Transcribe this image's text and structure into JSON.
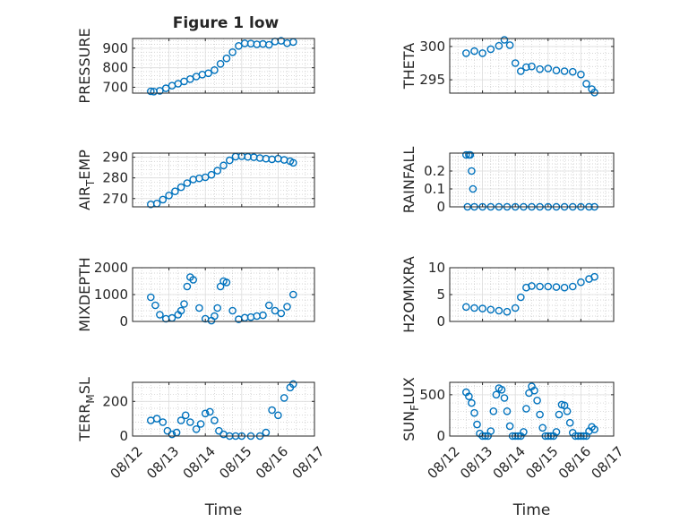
{
  "figure_title": "Figure 1 low",
  "marker_color": "#0072BD",
  "chart_data": [
    {
      "type": "scatter",
      "id": "pressure",
      "ylabel": "PRESSURE",
      "ylim": [
        670,
        950
      ],
      "yticks": [
        700,
        800,
        900
      ],
      "grid": true,
      "minor_grid": true,
      "x": [
        "08/12 12:00",
        "08/12 14:00",
        "08/12 18:00",
        "08/12 22:00",
        "08/13 02:00",
        "08/13 06:00",
        "08/13 10:00",
        "08/13 14:00",
        "08/13 18:00",
        "08/13 22:00",
        "08/14 02:00",
        "08/14 06:00",
        "08/14 10:00",
        "08/14 14:00",
        "08/14 18:00",
        "08/14 22:00",
        "08/15 02:00",
        "08/15 06:00",
        "08/15 10:00",
        "08/15 14:00",
        "08/15 18:00",
        "08/15 22:00",
        "08/16 02:00",
        "08/16 06:00",
        "08/16 10:00"
      ],
      "y": [
        679,
        678,
        682,
        695,
        708,
        718,
        730,
        742,
        755,
        765,
        772,
        788,
        820,
        848,
        880,
        912,
        925,
        924,
        920,
        922,
        918,
        935,
        938,
        926,
        932
      ]
    },
    {
      "type": "scatter",
      "id": "theta",
      "ylabel": "THETA",
      "ylim": [
        293,
        301.2
      ],
      "yticks": [
        295,
        300
      ],
      "grid": true,
      "minor_grid": true,
      "x": [
        "08/12 12:00",
        "08/12 18:00",
        "08/13 00:00",
        "08/13 06:00",
        "08/13 12:00",
        "08/13 16:00",
        "08/13 20:00",
        "08/14 00:00",
        "08/14 04:00",
        "08/14 08:00",
        "08/14 12:00",
        "08/14 18:00",
        "08/15 00:00",
        "08/15 06:00",
        "08/15 12:00",
        "08/15 18:00",
        "08/16 00:00",
        "08/16 04:00",
        "08/16 08:00",
        "08/16 10:00"
      ],
      "y": [
        299.0,
        299.3,
        299.0,
        299.6,
        300.1,
        301.0,
        300.2,
        297.5,
        296.3,
        296.9,
        297.0,
        296.6,
        296.7,
        296.4,
        296.3,
        296.2,
        295.8,
        294.4,
        293.6,
        293.1
      ]
    },
    {
      "type": "scatter",
      "id": "air_temp",
      "ylabel": "AIR_TEMP",
      "ylabel_parts": [
        "AIR",
        "T",
        "EMP"
      ],
      "ylim": [
        266,
        292
      ],
      "yticks": [
        270,
        280,
        290
      ],
      "grid": true,
      "minor_grid": true,
      "x": [
        "08/12 12:00",
        "08/12 16:00",
        "08/12 20:00",
        "08/13 00:00",
        "08/13 04:00",
        "08/13 08:00",
        "08/13 12:00",
        "08/13 16:00",
        "08/13 20:00",
        "08/14 00:00",
        "08/14 04:00",
        "08/14 08:00",
        "08/14 12:00",
        "08/14 16:00",
        "08/14 20:00",
        "08/15 00:00",
        "08/15 04:00",
        "08/15 08:00",
        "08/15 12:00",
        "08/15 16:00",
        "08/15 20:00",
        "08/16 00:00",
        "08/16 04:00",
        "08/16 08:00",
        "08/16 10:00"
      ],
      "y": [
        267.2,
        267.6,
        269.5,
        271.5,
        273.5,
        275.5,
        277.5,
        279.2,
        279.8,
        280.3,
        281.5,
        283.5,
        286.0,
        288.5,
        290.3,
        290.5,
        290.2,
        290.0,
        289.6,
        289.3,
        289.0,
        289.3,
        288.7,
        288.1,
        287.3
      ]
    },
    {
      "type": "scatter",
      "id": "rainfall",
      "ylabel": "RAINFALL",
      "ylim": [
        0,
        0.3
      ],
      "yticks": [
        0,
        0.1,
        0.2
      ],
      "grid": true,
      "minor_grid": true,
      "x": [
        "08/12 12:00",
        "08/12 13:00",
        "08/12 14:00",
        "08/12 15:00",
        "08/12 16:00",
        "08/12 17:00",
        "08/12 18:00",
        "08/13 00:00",
        "08/13 06:00",
        "08/13 12:00",
        "08/13 18:00",
        "08/14 00:00",
        "08/14 06:00",
        "08/14 12:00",
        "08/14 18:00",
        "08/15 00:00",
        "08/15 06:00",
        "08/15 12:00",
        "08/15 18:00",
        "08/16 00:00",
        "08/16 06:00",
        "08/16 10:00"
      ],
      "y": [
        0.29,
        0.0,
        0.29,
        0.29,
        0.2,
        0.1,
        0,
        0,
        0,
        0,
        0,
        0,
        0,
        0,
        0,
        0,
        0,
        0,
        0,
        0,
        0,
        0
      ]
    },
    {
      "type": "scatter",
      "id": "mixdepth",
      "ylabel": "MIXDEPTH",
      "ylim": [
        0,
        2000
      ],
      "yticks": [
        0,
        1000,
        2000
      ],
      "grid": true,
      "minor_grid": true,
      "x": [
        "08/12 12:00",
        "08/12 15:00",
        "08/12 18:00",
        "08/12 22:00",
        "08/13 02:00",
        "08/13 06:00",
        "08/13 08:00",
        "08/13 10:00",
        "08/13 12:00",
        "08/13 14:00",
        "08/13 16:00",
        "08/13 20:00",
        "08/14 00:00",
        "08/14 04:00",
        "08/14 06:00",
        "08/14 08:00",
        "08/14 10:00",
        "08/14 12:00",
        "08/14 14:00",
        "08/14 18:00",
        "08/14 22:00",
        "08/15 02:00",
        "08/15 06:00",
        "08/15 10:00",
        "08/15 14:00",
        "08/15 18:00",
        "08/15 22:00",
        "08/16 02:00",
        "08/16 06:00",
        "08/16 10:00"
      ],
      "y": [
        900,
        600,
        250,
        100,
        130,
        250,
        400,
        650,
        1300,
        1650,
        1550,
        500,
        100,
        30,
        200,
        500,
        1300,
        1500,
        1450,
        400,
        80,
        140,
        160,
        200,
        230,
        600,
        400,
        300,
        550,
        1000
      ]
    },
    {
      "type": "scatter",
      "id": "h2omixra",
      "ylabel": "H2OMIXRA",
      "ylim": [
        0,
        10
      ],
      "yticks": [
        0,
        5,
        10
      ],
      "grid": true,
      "minor_grid": true,
      "x": [
        "08/12 12:00",
        "08/12 18:00",
        "08/13 00:00",
        "08/13 06:00",
        "08/13 12:00",
        "08/13 18:00",
        "08/14 00:00",
        "08/14 04:00",
        "08/14 08:00",
        "08/14 12:00",
        "08/14 18:00",
        "08/15 00:00",
        "08/15 06:00",
        "08/15 12:00",
        "08/15 18:00",
        "08/16 00:00",
        "08/16 06:00",
        "08/16 10:00"
      ],
      "y": [
        2.7,
        2.5,
        2.4,
        2.2,
        2.0,
        1.8,
        2.5,
        4.5,
        6.3,
        6.6,
        6.5,
        6.5,
        6.4,
        6.3,
        6.5,
        7.3,
        7.9,
        8.3
      ]
    },
    {
      "type": "scatter",
      "id": "terr_msl",
      "ylabel": "TERR_MSL",
      "ylabel_parts": [
        "TERR",
        "M",
        "SL"
      ],
      "ylim": [
        0,
        310
      ],
      "yticks": [
        0,
        200
      ],
      "grid": true,
      "minor_grid": true,
      "x": [
        "08/12 12:00",
        "08/12 16:00",
        "08/12 20:00",
        "08/12 23:00",
        "08/13 02:00",
        "08/13 05:00",
        "08/13 08:00",
        "08/13 11:00",
        "08/13 14:00",
        "08/13 18:00",
        "08/13 21:00",
        "08/14 00:00",
        "08/14 03:00",
        "08/14 06:00",
        "08/14 09:00",
        "08/14 12:00",
        "08/14 16:00",
        "08/14 20:00",
        "08/15 00:00",
        "08/15 06:00",
        "08/15 12:00",
        "08/15 16:00",
        "08/15 20:00",
        "08/16 00:00",
        "08/16 04:00",
        "08/16 08:00",
        "08/16 10:00"
      ],
      "y": [
        90,
        100,
        80,
        30,
        10,
        20,
        90,
        120,
        80,
        40,
        70,
        130,
        140,
        90,
        30,
        10,
        0,
        0,
        0,
        0,
        0,
        20,
        150,
        120,
        220,
        280,
        300
      ]
    },
    {
      "type": "scatter",
      "id": "sun_flux",
      "ylabel": "SUN_FLUX",
      "ylabel_parts": [
        "SUN",
        "F",
        "LUX"
      ],
      "ylim": [
        0,
        650
      ],
      "yticks": [
        0,
        500
      ],
      "grid": true,
      "minor_grid": true,
      "x": [
        "08/12 12:00",
        "08/12 14:00",
        "08/12 16:00",
        "08/12 18:00",
        "08/12 20:00",
        "08/12 22:00",
        "08/13 00:00",
        "08/13 02:00",
        "08/13 04:00",
        "08/13 06:00",
        "08/13 08:00",
        "08/13 10:00",
        "08/13 12:00",
        "08/13 14:00",
        "08/13 16:00",
        "08/13 18:00",
        "08/13 20:00",
        "08/13 22:00",
        "08/14 00:00",
        "08/14 02:00",
        "08/14 04:00",
        "08/14 06:00",
        "08/14 08:00",
        "08/14 10:00",
        "08/14 12:00",
        "08/14 14:00",
        "08/14 16:00",
        "08/14 18:00",
        "08/14 20:00",
        "08/14 22:00",
        "08/15 00:00",
        "08/15 02:00",
        "08/15 04:00",
        "08/15 06:00",
        "08/15 08:00",
        "08/15 10:00",
        "08/15 12:00",
        "08/15 14:00",
        "08/15 16:00",
        "08/15 18:00",
        "08/15 20:00",
        "08/15 22:00",
        "08/16 00:00",
        "08/16 02:00",
        "08/16 04:00",
        "08/16 06:00",
        "08/16 08:00",
        "08/16 10:00"
      ],
      "y": [
        530,
        480,
        400,
        280,
        140,
        30,
        0,
        0,
        0,
        60,
        300,
        500,
        580,
        560,
        460,
        300,
        120,
        0,
        0,
        0,
        0,
        50,
        330,
        520,
        600,
        550,
        430,
        260,
        100,
        0,
        0,
        0,
        0,
        50,
        260,
        380,
        370,
        300,
        160,
        40,
        0,
        0,
        0,
        0,
        0,
        60,
        110,
        80
      ]
    }
  ],
  "x_axis": {
    "label": "Time",
    "range": [
      "08/12 00:00",
      "08/17 00:00"
    ],
    "tick_labels": [
      "08/12",
      "08/13",
      "08/14",
      "08/15",
      "08/16",
      "08/17"
    ],
    "tick_dates": [
      "08/12 00:00",
      "08/13 00:00",
      "08/14 00:00",
      "08/15 00:00",
      "08/16 00:00",
      "08/17 00:00"
    ]
  }
}
